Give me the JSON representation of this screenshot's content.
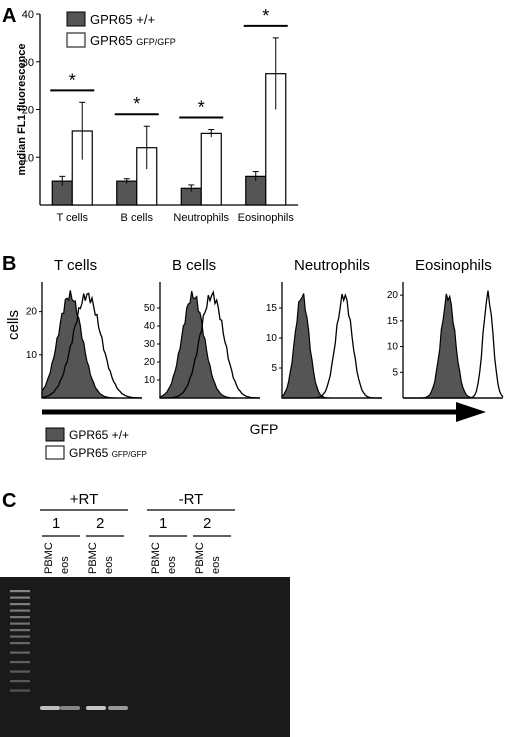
{
  "panels": {
    "a": "A",
    "b": "B",
    "c": "C"
  },
  "chart_data": [
    {
      "type": "bar",
      "panel": "A",
      "categories": [
        "T cells",
        "B cells",
        "Neutrophils",
        "Eosinophils"
      ],
      "series": [
        {
          "name": "GPR65 +/+",
          "values": [
            5,
            5,
            3.5,
            6
          ],
          "errors": [
            1,
            0.5,
            0.7,
            1
          ],
          "color": "#555555"
        },
        {
          "name": "GPR65 GFP/GFP",
          "name_main": "GPR65",
          "name_sub": "GFP/GFP",
          "values": [
            15.5,
            12,
            15,
            27.5
          ],
          "errors": [
            6,
            4.5,
            0.8,
            7.5
          ],
          "color": "#ffffff"
        }
      ],
      "significance": [
        "*",
        "*",
        "*",
        "*"
      ],
      "ylabel": "median FL1 fluorescence",
      "ylim": [
        0,
        40
      ],
      "yticks": [
        "10",
        "20",
        "30",
        "40"
      ]
    },
    {
      "type": "histogram",
      "panel": "B",
      "ylabel": "cells",
      "xlabel": "GFP",
      "legend": [
        {
          "label_main": "GPR65 +/+",
          "label_sub": "",
          "fill": "#555555"
        },
        {
          "label_main": "GPR65",
          "label_sub": "GFP/GFP",
          "fill": "#ffffff"
        }
      ],
      "subplots": [
        {
          "title": "T cells",
          "yticks": [
            "10",
            "20"
          ],
          "ymax": 25,
          "wt_peak": 0.28,
          "wt_width": 0.12,
          "ko_peak": 0.45,
          "ko_width": 0.14
        },
        {
          "title": "B cells",
          "yticks": [
            "10",
            "20",
            "30",
            "40",
            "50"
          ],
          "ymax": 60,
          "wt_peak": 0.33,
          "wt_width": 0.11,
          "ko_peak": 0.52,
          "ko_width": 0.12
        },
        {
          "title": "Neutrophils",
          "yticks": [
            "5",
            "10",
            "15"
          ],
          "ymax": 18,
          "wt_peak": 0.2,
          "wt_width": 0.07,
          "ko_peak": 0.62,
          "ko_width": 0.08
        },
        {
          "title": "Eosinophils",
          "yticks": [
            "5",
            "10",
            "15",
            "20"
          ],
          "ymax": 21,
          "wt_peak": 0.45,
          "wt_width": 0.07,
          "ko_peak": 0.85,
          "ko_width": 0.05
        }
      ]
    }
  ],
  "gel": {
    "groups": [
      {
        "label": "+RT",
        "subgroups": [
          {
            "label": "1",
            "lanes": [
              "PBMC",
              "eos"
            ]
          },
          {
            "label": "2",
            "lanes": [
              "PBMC",
              "eos"
            ]
          }
        ]
      },
      {
        "label": "-RT",
        "subgroups": [
          {
            "label": "1",
            "lanes": [
              "PBMC",
              "eos"
            ]
          },
          {
            "label": "2",
            "lanes": [
              "PBMC",
              "eos"
            ]
          }
        ]
      }
    ]
  }
}
